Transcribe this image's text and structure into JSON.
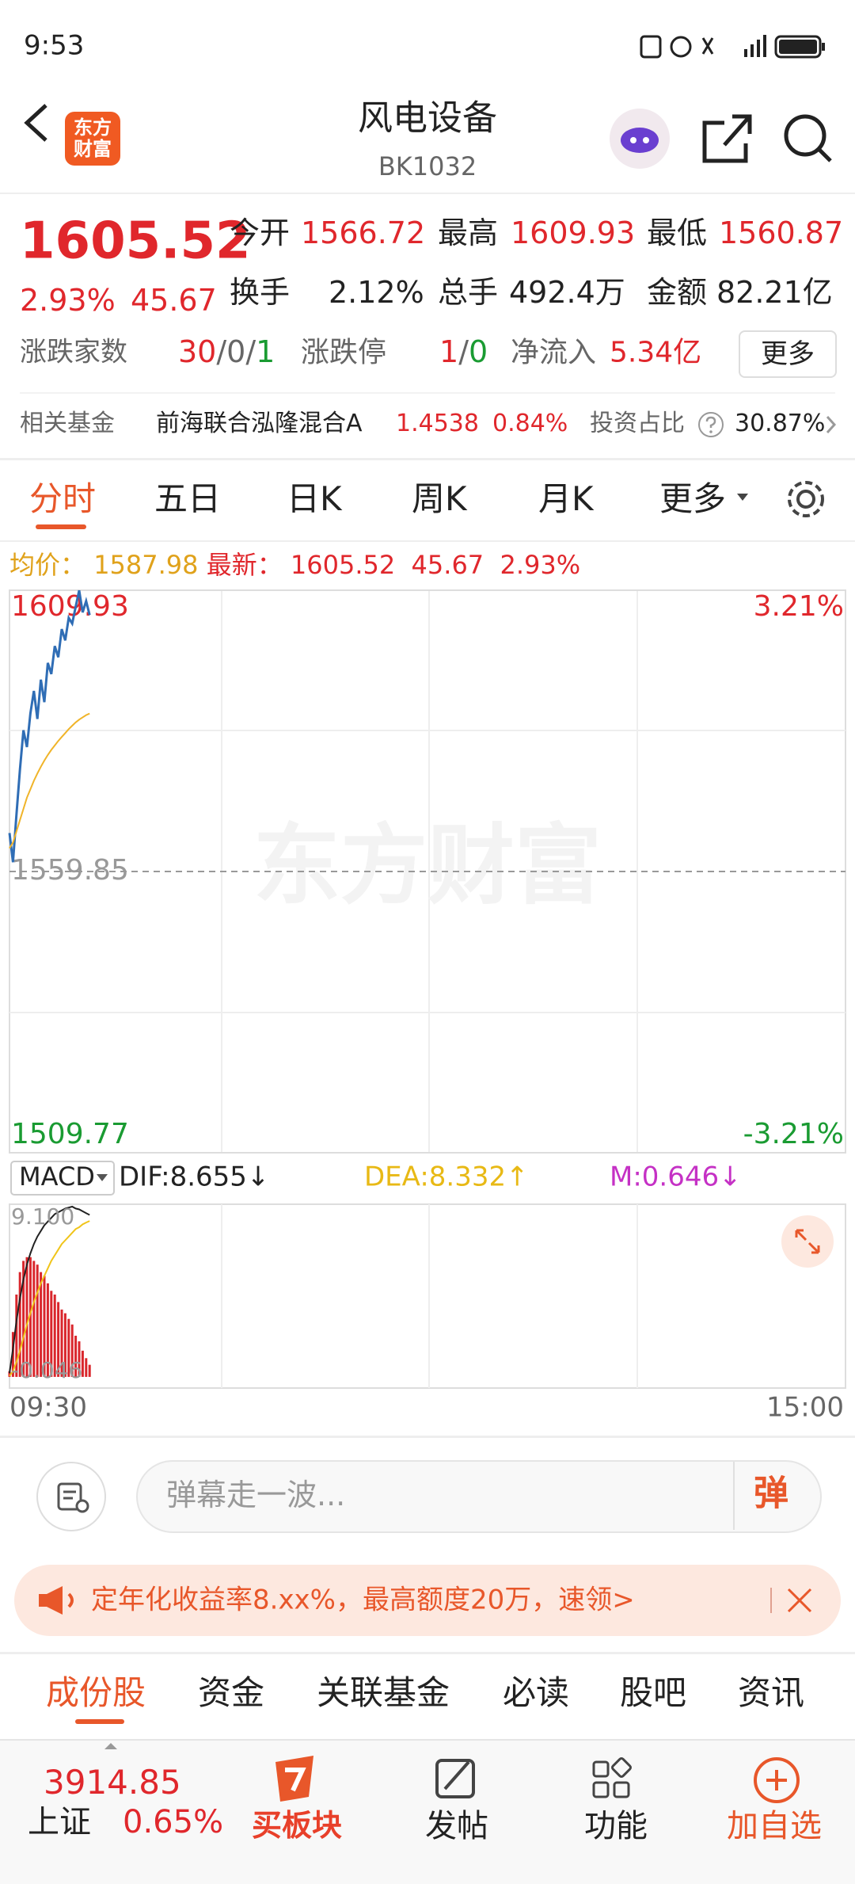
{
  "status_bar": {
    "time": "9:53"
  },
  "header": {
    "logo": "东方财富",
    "title": "风电设备",
    "code": "BK1032"
  },
  "quote": {
    "price": 1605.52,
    "change_pct": "2.93%",
    "change": 45.67,
    "stats": [
      {
        "label": "今开",
        "value": 1566.72
      },
      {
        "label": "最高",
        "value": 1609.93
      },
      {
        "label": "最低",
        "value": 1560.87
      },
      {
        "label": "换手",
        "value": "2.12%"
      },
      {
        "label": "总手",
        "value": "492.4万"
      },
      {
        "label": "金额",
        "value": "82.21亿"
      }
    ],
    "breadth": {
      "label": "涨跌家数",
      "parts": [
        "30",
        "/",
        "0",
        "/",
        "1"
      ]
    },
    "limit": {
      "label": "涨跌停",
      "parts": [
        "1",
        "/",
        "0"
      ]
    },
    "inflow": {
      "label": "净流入",
      "value": "5.34亿"
    },
    "more": "更多"
  },
  "fund": {
    "label": "相关基金",
    "name": "前海联合泓隆混合A",
    "nav": 1.4538,
    "change": "0.84%",
    "ratio_label": "投资占比",
    "ratio": "30.87%"
  },
  "tabs": [
    "分时",
    "五日",
    "日K",
    "周K",
    "月K",
    "更多"
  ],
  "info_line": {
    "avg_label": "均价：",
    "avg": 1587.98,
    "last_label": "最新：",
    "last": 1605.52,
    "change": 45.67,
    "change_pct": "2.93%"
  },
  "chart_data": {
    "type": "line",
    "watermark": "东方财富",
    "ylim": [
      1509.77,
      1609.93
    ],
    "yticks": [
      1509.77,
      1559.85,
      1609.93
    ],
    "pct_ticks": [
      {
        "value": 1509.77,
        "label": "-3.21%"
      },
      {
        "value": 1609.93,
        "label": "3.21%"
      }
    ],
    "xticks": [
      "09:30",
      "15:00"
    ],
    "series": [
      {
        "color": "#2f6db5",
        "values": [
          1566.7,
          1561.5,
          1570,
          1578,
          1585,
          1582,
          1588,
          1592,
          1587,
          1594,
          1590,
          1597,
          1595,
          1600,
          1598,
          1603,
          1601,
          1605,
          1604,
          1607,
          1609.9,
          1606,
          1608,
          1605.52
        ]
      },
      {
        "color": "#f0b429",
        "values": [
          1564,
          1565,
          1567,
          1569,
          1571,
          1573,
          1574.5,
          1576,
          1577.3,
          1578.5,
          1579.6,
          1580.6,
          1581.5,
          1582.3,
          1583.1,
          1583.8,
          1584.5,
          1585.2,
          1585.8,
          1586.4,
          1586.9,
          1587.3,
          1587.7,
          1587.98
        ]
      }
    ]
  },
  "macd": {
    "type": "bar",
    "selector": "MACD",
    "dif_label": "DIF:8.655↓",
    "dea_label": "DEA:8.332↑",
    "m_label": "M:0.646↓",
    "ylim": [
      -0.046,
      9.1
    ],
    "yticks": [
      -0.046,
      {
        "value": 9.1,
        "label": "9.100"
      }
    ],
    "color": "#d9262c",
    "values": [
      0.3,
      2.4,
      4.4,
      5.6,
      6.2,
      6.4,
      6.4,
      6.2,
      6.0,
      5.6,
      5.4,
      5.0,
      4.6,
      4.4,
      4.0,
      3.6,
      3.4,
      3.1,
      2.8,
      2.2,
      1.9,
      1.4,
      1.0,
      0.646
    ],
    "series": [
      {
        "color": "#222222",
        "values": [
          0.2,
          1.5,
          3,
          4.2,
          5.2,
          6,
          6.6,
          7.1,
          7.5,
          7.8,
          8.1,
          8.3,
          8.5,
          8.7,
          8.8,
          8.9,
          9.0,
          9.05,
          9.1,
          9.0,
          8.95,
          8.85,
          8.75,
          8.655
        ]
      },
      {
        "color": "#f0c419",
        "values": [
          0.05,
          0.3,
          0.8,
          1.4,
          2.1,
          2.8,
          3.4,
          4,
          4.5,
          5,
          5.4,
          5.8,
          6.2,
          6.5,
          6.8,
          7.1,
          7.3,
          7.5,
          7.7,
          7.9,
          8.0,
          8.15,
          8.25,
          8.332
        ]
      }
    ]
  },
  "comment": {
    "placeholder": "弹幕走一波...",
    "button": "弹"
  },
  "banner": {
    "text": "定年化收益率8.xx%，最高额度20万，速领>"
  },
  "sub_tabs": [
    "成份股",
    "资金",
    "关联基金",
    "必读",
    "股吧",
    "资讯"
  ],
  "bottom_nav": {
    "index_value": 3914.85,
    "index_name": "上证",
    "index_change": "0.65%",
    "items": [
      "买板块",
      "发帖",
      "功能",
      "加自选"
    ]
  }
}
